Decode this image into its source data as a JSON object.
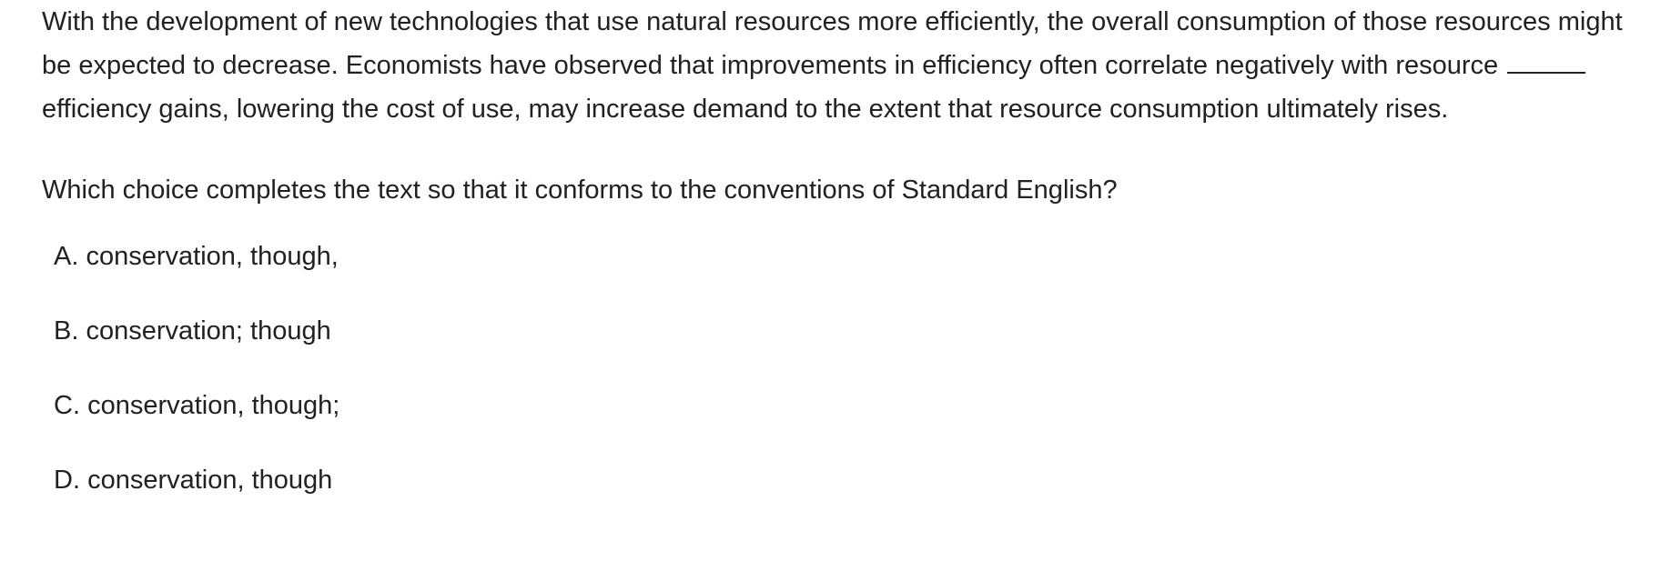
{
  "passage": {
    "before_blank": "With the development of new technologies that use natural resources more efficiently, the overall consumption of those resources might be expected to decrease. Economists have observed that improvements in efficiency often correlate negatively with resource",
    "after_blank": "efficiency gains, lowering the cost of use, may increase demand to the extent that resource consumption ultimately rises."
  },
  "question": "Which choice completes the text so that it conforms to the conventions of Standard English?",
  "choices": [
    {
      "letter": "A.",
      "text": "conservation, though,"
    },
    {
      "letter": "B.",
      "text": "conservation; though"
    },
    {
      "letter": "C.",
      "text": "conservation, though;"
    },
    {
      "letter": "D.",
      "text": "conservation, though"
    }
  ]
}
